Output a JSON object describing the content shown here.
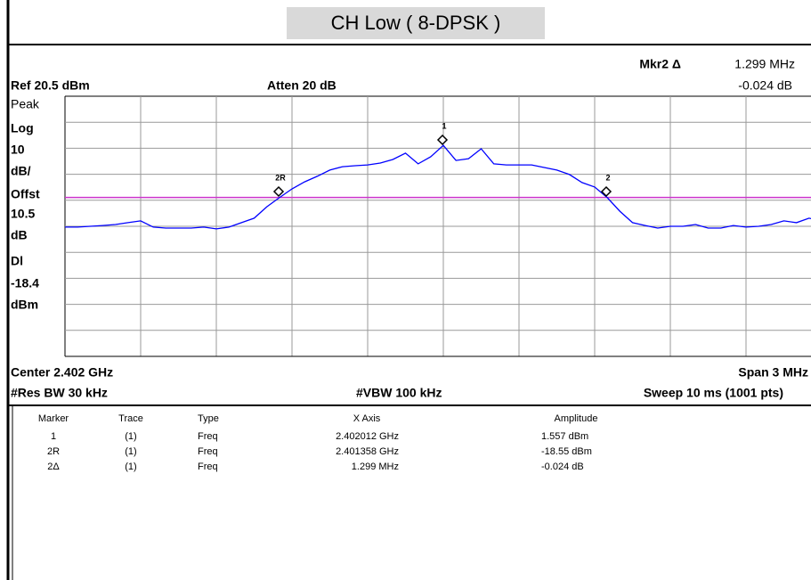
{
  "title": "CH Low ( 8-DPSK )",
  "header": {
    "mkr_label": "Mkr2 Δ",
    "mkr_x": "1.299 MHz",
    "ref": "Ref 20.5 dBm",
    "atten": "Atten 20 dB",
    "mkr_y": "-0.024 dB"
  },
  "left_labels": [
    "Peak",
    "Log",
    "10",
    "dB/",
    "Offst",
    "10.5",
    "dB",
    "Dl",
    "-18.4",
    "dBm"
  ],
  "footer": {
    "center": "Center 2.402 GHz",
    "span": "Span 3 MHz",
    "rbw": "#Res BW 30 kHz",
    "vbw": "#VBW 100 kHz",
    "sweep": "Sweep 10 ms (1001 pts)"
  },
  "chart_data": {
    "type": "line",
    "color": "#0000ff",
    "display_line": -18.4,
    "display_line_color": "#cc33cc",
    "ylim": [
      -79.5,
      20.5
    ],
    "markers": [
      "1",
      "2R",
      "2"
    ],
    "values": [
      -29.8,
      -29.8,
      -29.5,
      -29.2,
      -28.8,
      -28.1,
      -27.4,
      -29.8,
      -30.2,
      -30.2,
      -30.2,
      -29.8,
      -30.5,
      -29.8,
      -28.1,
      -26.4,
      -22.0,
      -18.5,
      -15.1,
      -12.4,
      -10.3,
      -7.9,
      -6.6,
      -6.2,
      -5.9,
      -5.2,
      -3.8,
      -1.4,
      -5.5,
      -2.8,
      1.6,
      -4.2,
      -3.5,
      0.3,
      -5.5,
      -5.9,
      -5.9,
      -5.9,
      -6.9,
      -7.9,
      -9.6,
      -12.7,
      -14.4,
      -18.5,
      -23.7,
      -28.1,
      -29.2,
      -30.2,
      -29.5,
      -29.5,
      -28.8,
      -30.2,
      -30.2,
      -29.2,
      -29.8,
      -29.5,
      -28.8,
      -27.4,
      -28.1,
      -26.4,
      -27.4
    ]
  },
  "table": {
    "columns": [
      "Marker",
      "Trace",
      "Type",
      "X Axis",
      "Amplitude"
    ],
    "rows": [
      [
        "1",
        "(1)",
        "Freq",
        "2.402012 GHz",
        "1.557 dBm"
      ],
      [
        "2R",
        "(1)",
        "Freq",
        "2.401358 GHz",
        "-18.55 dBm"
      ],
      [
        "2Δ",
        "(1)",
        "Freq",
        "1.299 MHz",
        "-0.024 dB"
      ]
    ]
  }
}
